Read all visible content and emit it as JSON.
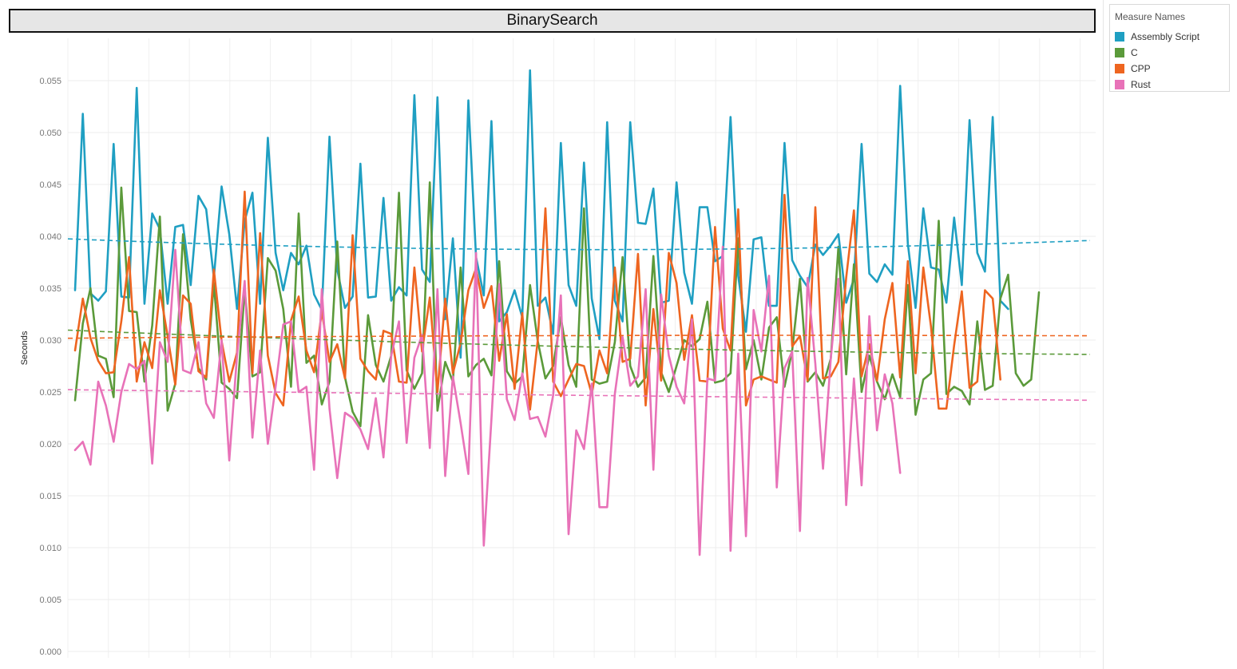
{
  "legend": {
    "title": "Measure Names"
  },
  "chart_data": {
    "type": "line",
    "title": "BinarySearch",
    "xlabel": "",
    "ylabel": "Seconds",
    "ylim": [
      0,
      0.058
    ],
    "y_ticks": [
      "0.000",
      "0.005",
      "0.010",
      "0.015",
      "0.020",
      "0.025",
      "0.030",
      "0.035",
      "0.040",
      "0.045",
      "0.050",
      "0.055"
    ],
    "grid": true,
    "legend_position": "top-right",
    "trend_lines": true,
    "series": [
      {
        "name": "Assembly Script",
        "color": "#1f9fc2",
        "values": [
          0.0348,
          0.0518,
          0.0345,
          0.0338,
          0.0347,
          0.0489,
          0.0342,
          0.0341,
          0.0543,
          0.0335,
          0.0422,
          0.0407,
          0.0335,
          0.0409,
          0.0411,
          0.0353,
          0.0439,
          0.0426,
          0.036,
          0.0448,
          0.0402,
          0.033,
          0.0415,
          0.0442,
          0.0335,
          0.0495,
          0.0384,
          0.0348,
          0.0384,
          0.0373,
          0.0391,
          0.0344,
          0.0329,
          0.0496,
          0.0368,
          0.0331,
          0.0342,
          0.047,
          0.0341,
          0.0342,
          0.0437,
          0.0338,
          0.0351,
          0.0343,
          0.0536,
          0.0368,
          0.0356,
          0.0534,
          0.032,
          0.0398,
          0.0283,
          0.0531,
          0.038,
          0.0343,
          0.0511,
          0.0318,
          0.0327,
          0.0348,
          0.0322,
          0.056,
          0.0333,
          0.0341,
          0.0306,
          0.049,
          0.0353,
          0.0333,
          0.0471,
          0.034,
          0.0301,
          0.051,
          0.0338,
          0.0318,
          0.051,
          0.0413,
          0.0412,
          0.0446,
          0.0336,
          0.0338,
          0.0452,
          0.0365,
          0.0335,
          0.0428,
          0.0428,
          0.0376,
          0.0381,
          0.0515,
          0.0362,
          0.0308,
          0.0397,
          0.0399,
          0.0333,
          0.0333,
          0.049,
          0.0377,
          0.0362,
          0.0351,
          0.0392,
          0.0382,
          0.0391,
          0.0402,
          0.0336,
          0.0359,
          0.0489,
          0.0364,
          0.0356,
          0.0373,
          0.0363,
          0.0545,
          0.0393,
          0.0331,
          0.0427,
          0.037,
          0.0368,
          0.0336,
          0.0418,
          0.0353,
          0.0512,
          0.0384,
          0.0366,
          0.0515,
          0.0338,
          0.033
        ]
      },
      {
        "name": "C",
        "color": "#5b9a3a",
        "values": [
          0.0242,
          0.0316,
          0.035,
          0.0285,
          0.0282,
          0.0245,
          0.0447,
          0.0328,
          0.0327,
          0.026,
          0.0314,
          0.0419,
          0.0232,
          0.0258,
          0.0402,
          0.032,
          0.0273,
          0.0262,
          0.0355,
          0.0259,
          0.0253,
          0.0244,
          0.0349,
          0.0265,
          0.0269,
          0.0379,
          0.0367,
          0.033,
          0.0255,
          0.0422,
          0.0278,
          0.0285,
          0.0238,
          0.026,
          0.0395,
          0.0264,
          0.0231,
          0.0217,
          0.0324,
          0.0276,
          0.026,
          0.0285,
          0.0442,
          0.0271,
          0.0253,
          0.0268,
          0.0452,
          0.0232,
          0.0279,
          0.026,
          0.037,
          0.0265,
          0.0276,
          0.0282,
          0.0266,
          0.0376,
          0.027,
          0.0258,
          0.0265,
          0.0353,
          0.0299,
          0.0263,
          0.0275,
          0.0322,
          0.0276,
          0.0255,
          0.0427,
          0.0262,
          0.0258,
          0.026,
          0.0298,
          0.038,
          0.0275,
          0.0255,
          0.0264,
          0.0381,
          0.0269,
          0.025,
          0.0275,
          0.03,
          0.0294,
          0.0301,
          0.0337,
          0.0259,
          0.0261,
          0.0268,
          0.0398,
          0.0272,
          0.03,
          0.0262,
          0.0312,
          0.0322,
          0.0255,
          0.029,
          0.0359,
          0.026,
          0.0269,
          0.0256,
          0.0282,
          0.039,
          0.0267,
          0.0373,
          0.025,
          0.0285,
          0.026,
          0.0243,
          0.0267,
          0.0245,
          0.0353,
          0.0228,
          0.0262,
          0.0268,
          0.0415,
          0.0248,
          0.0255,
          0.0251,
          0.0238,
          0.0318,
          0.0252,
          0.0256,
          0.034,
          0.0363,
          0.0268,
          0.0256,
          0.0262,
          0.0346
        ]
      },
      {
        "name": "CPP",
        "color": "#ee6520",
        "values": [
          0.029,
          0.034,
          0.0302,
          0.028,
          0.0268,
          0.0269,
          0.0318,
          0.038,
          0.026,
          0.0298,
          0.0273,
          0.0348,
          0.0304,
          0.0257,
          0.0343,
          0.0335,
          0.027,
          0.0264,
          0.0368,
          0.0299,
          0.026,
          0.0288,
          0.0443,
          0.0268,
          0.0403,
          0.0285,
          0.0249,
          0.0237,
          0.0319,
          0.0342,
          0.029,
          0.0269,
          0.0328,
          0.0279,
          0.0296,
          0.0263,
          0.0401,
          0.0282,
          0.027,
          0.0262,
          0.0309,
          0.0306,
          0.026,
          0.0259,
          0.037,
          0.0289,
          0.0341,
          0.025,
          0.034,
          0.0268,
          0.0297,
          0.0348,
          0.0369,
          0.0331,
          0.0352,
          0.028,
          0.0325,
          0.0253,
          0.0326,
          0.0233,
          0.03,
          0.0427,
          0.026,
          0.0246,
          0.0262,
          0.0277,
          0.0275,
          0.0248,
          0.029,
          0.0268,
          0.037,
          0.0279,
          0.0282,
          0.0383,
          0.0237,
          0.033,
          0.0261,
          0.0384,
          0.0355,
          0.0281,
          0.0324,
          0.0261,
          0.026,
          0.0409,
          0.0311,
          0.029,
          0.0426,
          0.0237,
          0.0262,
          0.0265,
          0.0262,
          0.0259,
          0.044,
          0.0294,
          0.0304,
          0.0261,
          0.0428,
          0.0263,
          0.0265,
          0.0279,
          0.036,
          0.0425,
          0.0265,
          0.0296,
          0.0261,
          0.032,
          0.0355,
          0.0264,
          0.0376,
          0.0268,
          0.037,
          0.0313,
          0.0234,
          0.0234,
          0.0295,
          0.0347,
          0.0254,
          0.026,
          0.0348,
          0.034,
          0.0262
        ]
      },
      {
        "name": "Rust",
        "color": "#e872b8",
        "values": [
          0.0194,
          0.0202,
          0.018,
          0.026,
          0.0237,
          0.0202,
          0.025,
          0.0277,
          0.0272,
          0.028,
          0.0181,
          0.0298,
          0.0279,
          0.0387,
          0.0271,
          0.0268,
          0.0298,
          0.0239,
          0.0225,
          0.03,
          0.0184,
          0.0285,
          0.0357,
          0.0206,
          0.029,
          0.02,
          0.0255,
          0.0315,
          0.0318,
          0.025,
          0.0255,
          0.0175,
          0.0349,
          0.0234,
          0.0167,
          0.023,
          0.0225,
          0.0214,
          0.0195,
          0.0244,
          0.0187,
          0.0285,
          0.0318,
          0.0201,
          0.0283,
          0.0305,
          0.0196,
          0.0349,
          0.0169,
          0.0265,
          0.022,
          0.0171,
          0.0384,
          0.0102,
          0.0224,
          0.0354,
          0.0243,
          0.0223,
          0.0268,
          0.0224,
          0.0226,
          0.0207,
          0.0247,
          0.0343,
          0.0113,
          0.0213,
          0.0195,
          0.0258,
          0.0139,
          0.0139,
          0.0248,
          0.0303,
          0.0256,
          0.0265,
          0.0349,
          0.0175,
          0.0344,
          0.0285,
          0.0255,
          0.0239,
          0.032,
          0.0093,
          0.0263,
          0.0261,
          0.039,
          0.0097,
          0.0287,
          0.0111,
          0.0329,
          0.0289,
          0.0362,
          0.0158,
          0.0273,
          0.0289,
          0.0116,
          0.036,
          0.0277,
          0.0176,
          0.0282,
          0.0359,
          0.0141,
          0.0263,
          0.016,
          0.0323,
          0.0213,
          0.0267,
          0.0239,
          0.0172
        ]
      }
    ]
  }
}
